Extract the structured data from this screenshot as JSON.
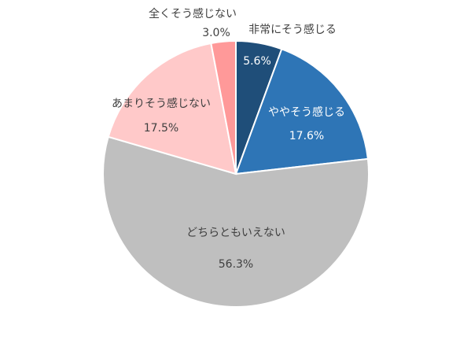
{
  "chart_data": {
    "type": "pie",
    "categories": [
      "非常にそう感じる",
      "ややそう感じる",
      "どちらともいえない",
      "あまりそう感じない",
      "全くそう感じない"
    ],
    "values": [
      5.6,
      17.6,
      56.3,
      17.5,
      3.0
    ],
    "value_labels": [
      "5.6%",
      "17.6%",
      "56.3%",
      "17.5%",
      "3.0%"
    ],
    "colors": [
      "#1f4e79",
      "#2e75b6",
      "#bfbfbf",
      "#ffc9c9",
      "#ff9999"
    ]
  }
}
